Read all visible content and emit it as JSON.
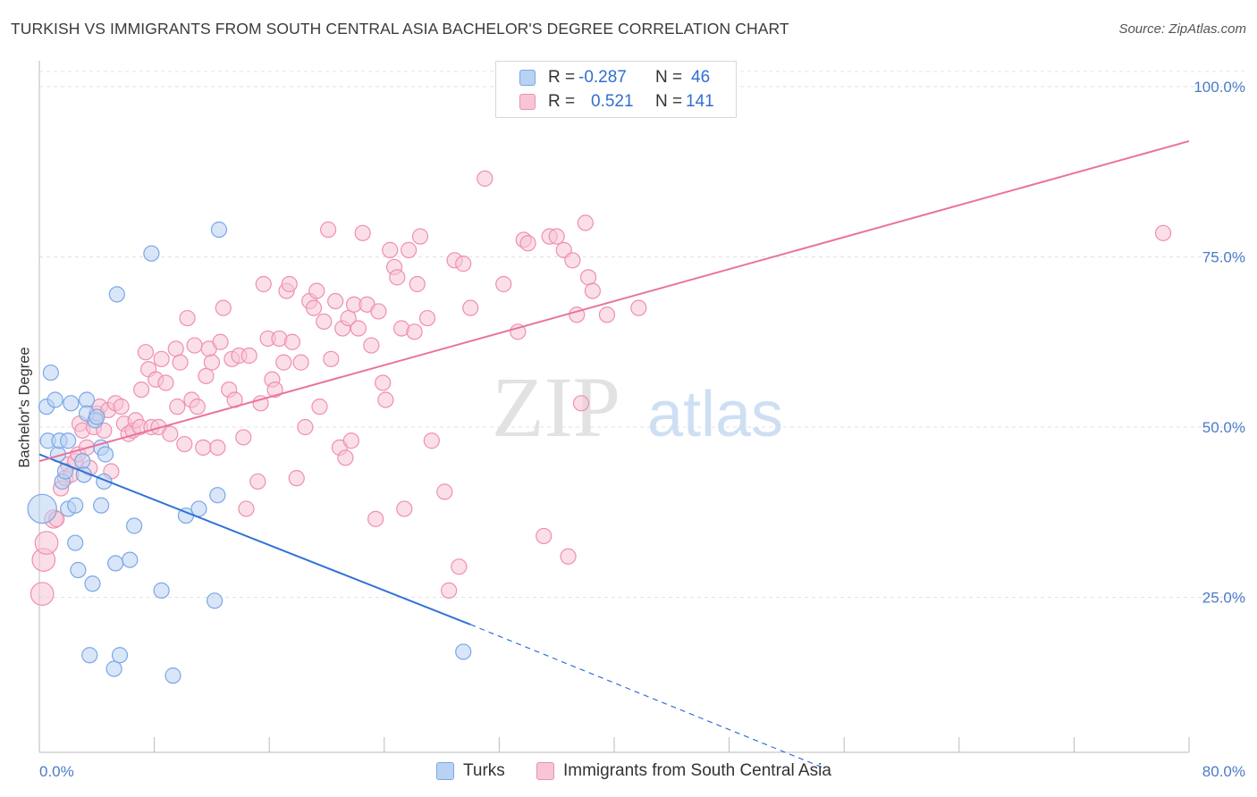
{
  "title": "TURKISH VS IMMIGRANTS FROM SOUTH CENTRAL ASIA BACHELOR'S DEGREE CORRELATION CHART",
  "source": "Source: ZipAtlas.com",
  "watermark": {
    "zip": "ZIP",
    "atlas": "atlas"
  },
  "legend_top": {
    "rows": [
      {
        "r_label": "R =",
        "r_value": "-0.287",
        "n_label": "N =",
        "n_value": "46",
        "color": "#7aa7e6",
        "fill": "#b9d1f3"
      },
      {
        "r_label": "R =",
        "r_value": "0.521",
        "n_label": "N =",
        "n_value": "141",
        "color": "#ef8fae",
        "fill": "#f7c5d5"
      }
    ]
  },
  "legend_bottom": [
    {
      "label": "Turks",
      "color": "#7aa7e6",
      "fill": "#b9d1f3"
    },
    {
      "label": "Immigrants from South Central Asia",
      "color": "#ef8fae",
      "fill": "#f7c5d5"
    }
  ],
  "colors": {
    "blue_line": "#2f72d6",
    "pink_line": "#e8739b",
    "grid": "#e3e3e3",
    "axis_text": "#4a7bc8"
  },
  "chart_data": {
    "type": "scatter",
    "title": "TURKISH VS IMMIGRANTS FROM SOUTH CENTRAL ASIA BACHELOR'S DEGREE CORRELATION CHART",
    "xlabel": "",
    "ylabel": "Bachelor's Degree",
    "xlim": [
      0,
      80
    ],
    "ylim": [
      0,
      100
    ],
    "x_tick_labels": [
      "0.0%",
      "80.0%"
    ],
    "y_tick_labels": [
      "100.0%",
      "75.0%",
      "50.0%",
      "25.0%"
    ],
    "y_ticks": [
      100,
      75,
      50,
      25
    ],
    "grid": true,
    "legend_position": "top-center",
    "series": [
      {
        "name": "Turks",
        "color": "#7aa7e6",
        "fill": "#b9d1f3",
        "trend": {
          "x0": 0,
          "y0": 46,
          "x1": 30,
          "y1": 21,
          "dashed_to_x": 54.5,
          "dashed_to_y": 0
        },
        "points": [
          [
            0.2,
            38,
            1.9
          ],
          [
            0.5,
            53,
            1
          ],
          [
            0.6,
            48,
            1
          ],
          [
            0.8,
            58,
            1
          ],
          [
            1.1,
            54,
            1
          ],
          [
            1.3,
            46,
            1
          ],
          [
            1.4,
            48,
            1
          ],
          [
            1.6,
            42,
            1
          ],
          [
            1.8,
            43.5,
            1
          ],
          [
            2.0,
            48,
            1
          ],
          [
            2.0,
            38,
            1
          ],
          [
            2.2,
            53.5,
            1
          ],
          [
            2.5,
            33,
            1
          ],
          [
            2.7,
            29,
            1
          ],
          [
            2.5,
            38.5,
            1
          ],
          [
            3.0,
            45,
            1
          ],
          [
            3.1,
            43,
            1
          ],
          [
            3.3,
            54,
            1
          ],
          [
            3.3,
            52,
            1
          ],
          [
            3.5,
            16.5,
            1
          ],
          [
            3.7,
            27,
            1
          ],
          [
            3.9,
            51,
            1
          ],
          [
            4.0,
            51.5,
            1
          ],
          [
            4.3,
            47,
            1
          ],
          [
            4.3,
            38.5,
            1
          ],
          [
            4.5,
            42,
            1
          ],
          [
            4.6,
            46,
            1
          ],
          [
            5.2,
            14.5,
            1
          ],
          [
            5.3,
            30,
            1
          ],
          [
            5.4,
            69.5,
            1
          ],
          [
            5.6,
            16.5,
            1
          ],
          [
            6.3,
            30.5,
            1
          ],
          [
            6.6,
            35.5,
            1
          ],
          [
            7.8,
            75.5,
            1
          ],
          [
            8.5,
            26,
            1
          ],
          [
            9.3,
            13.5,
            1
          ],
          [
            10.2,
            37,
            1
          ],
          [
            11.1,
            38,
            1
          ],
          [
            12.2,
            24.5,
            1
          ],
          [
            12.4,
            40,
            1
          ],
          [
            12.5,
            79,
            1
          ],
          [
            29.5,
            17,
            1
          ]
        ]
      },
      {
        "name": "Immigrants from South Central Asia",
        "color": "#ef8fae",
        "fill": "#f7c5d5",
        "trend": {
          "x0": 0,
          "y0": 45,
          "x1": 80,
          "y1": 92
        },
        "points": [
          [
            0.2,
            25.5,
            1.5
          ],
          [
            0.3,
            30.5,
            1.5
          ],
          [
            0.5,
            33,
            1.5
          ],
          [
            1.0,
            36.5,
            1.2
          ],
          [
            1.2,
            36.5,
            1
          ],
          [
            1.5,
            41,
            1
          ],
          [
            1.8,
            42.5,
            1
          ],
          [
            2.0,
            44.5,
            1
          ],
          [
            2.2,
            43,
            1
          ],
          [
            2.5,
            45,
            1
          ],
          [
            2.7,
            46,
            1
          ],
          [
            2.8,
            50.5,
            1
          ],
          [
            3.0,
            49.5,
            1
          ],
          [
            3.3,
            47,
            1
          ],
          [
            3.5,
            44,
            1
          ],
          [
            3.8,
            50,
            1
          ],
          [
            4.0,
            52,
            1
          ],
          [
            4.2,
            53,
            1
          ],
          [
            4.5,
            49.5,
            1
          ],
          [
            4.8,
            52.5,
            1
          ],
          [
            5.0,
            43.5,
            1
          ],
          [
            5.3,
            53.5,
            1
          ],
          [
            5.7,
            53,
            1
          ],
          [
            5.9,
            50.5,
            1
          ],
          [
            6.2,
            49,
            1
          ],
          [
            6.5,
            49.5,
            1
          ],
          [
            6.7,
            51,
            1
          ],
          [
            7.0,
            50,
            1
          ],
          [
            7.1,
            55.5,
            1
          ],
          [
            7.4,
            61,
            1
          ],
          [
            7.6,
            58.5,
            1
          ],
          [
            7.8,
            50,
            1
          ],
          [
            8.1,
            57,
            1
          ],
          [
            8.3,
            50,
            1
          ],
          [
            8.5,
            60,
            1
          ],
          [
            8.8,
            56.5,
            1
          ],
          [
            9.1,
            49,
            1
          ],
          [
            9.5,
            61.5,
            1
          ],
          [
            9.6,
            53,
            1
          ],
          [
            9.8,
            59.5,
            1
          ],
          [
            10.1,
            47.5,
            1
          ],
          [
            10.3,
            66,
            1
          ],
          [
            10.6,
            54,
            1
          ],
          [
            10.8,
            62,
            1
          ],
          [
            11.0,
            53,
            1
          ],
          [
            11.4,
            47,
            1
          ],
          [
            11.6,
            57.5,
            1
          ],
          [
            11.8,
            61.5,
            1
          ],
          [
            12.0,
            59.5,
            1
          ],
          [
            12.4,
            47,
            1
          ],
          [
            12.6,
            62.5,
            1
          ],
          [
            12.8,
            67.5,
            1
          ],
          [
            13.2,
            55.5,
            1
          ],
          [
            13.4,
            60,
            1
          ],
          [
            13.6,
            54,
            1
          ],
          [
            13.9,
            60.5,
            1
          ],
          [
            14.2,
            48.5,
            1
          ],
          [
            14.4,
            38,
            1
          ],
          [
            14.6,
            60.5,
            1
          ],
          [
            15.2,
            42,
            1
          ],
          [
            15.4,
            53.5,
            1
          ],
          [
            15.6,
            71,
            1
          ],
          [
            15.9,
            63,
            1
          ],
          [
            16.2,
            57,
            1
          ],
          [
            16.4,
            55.5,
            1
          ],
          [
            16.7,
            63,
            1
          ],
          [
            17.0,
            59.5,
            1
          ],
          [
            17.2,
            70,
            1
          ],
          [
            17.4,
            71,
            1
          ],
          [
            17.6,
            62.5,
            1
          ],
          [
            17.9,
            42.5,
            1
          ],
          [
            18.2,
            59.5,
            1
          ],
          [
            18.5,
            50,
            1
          ],
          [
            18.8,
            68.5,
            1
          ],
          [
            19.1,
            67.5,
            1
          ],
          [
            19.3,
            70,
            1
          ],
          [
            19.5,
            53,
            1
          ],
          [
            19.8,
            65.5,
            1
          ],
          [
            20.1,
            79,
            1
          ],
          [
            20.3,
            60,
            1
          ],
          [
            20.6,
            68.5,
            1
          ],
          [
            20.9,
            47,
            1
          ],
          [
            21.1,
            64.5,
            1
          ],
          [
            21.3,
            45.5,
            1
          ],
          [
            21.5,
            66,
            1
          ],
          [
            21.7,
            48,
            1
          ],
          [
            21.9,
            68,
            1
          ],
          [
            22.2,
            64.5,
            1
          ],
          [
            22.5,
            78.5,
            1
          ],
          [
            22.8,
            68,
            1
          ],
          [
            23.1,
            62,
            1
          ],
          [
            23.4,
            36.5,
            1
          ],
          [
            23.6,
            67,
            1
          ],
          [
            23.9,
            56.5,
            1
          ],
          [
            24.1,
            54,
            1
          ],
          [
            24.4,
            76,
            1
          ],
          [
            24.7,
            73.5,
            1
          ],
          [
            24.9,
            72,
            1
          ],
          [
            25.2,
            64.5,
            1
          ],
          [
            25.4,
            38,
            1
          ],
          [
            25.7,
            76,
            1
          ],
          [
            26.1,
            64,
            1
          ],
          [
            26.3,
            71,
            1
          ],
          [
            26.5,
            78,
            1
          ],
          [
            27.0,
            66,
            1
          ],
          [
            27.3,
            48,
            1
          ],
          [
            28.2,
            40.5,
            1
          ],
          [
            28.5,
            26,
            1
          ],
          [
            28.9,
            74.5,
            1
          ],
          [
            29.2,
            29.5,
            1
          ],
          [
            29.5,
            74,
            1
          ],
          [
            30.0,
            67.5,
            1
          ],
          [
            31.0,
            86.5,
            1
          ],
          [
            32.3,
            71,
            1
          ],
          [
            33.3,
            64,
            1
          ],
          [
            33.7,
            77.5,
            1
          ],
          [
            34.0,
            77,
            1
          ],
          [
            35.1,
            34,
            1
          ],
          [
            35.5,
            78,
            1
          ],
          [
            36.0,
            78,
            1
          ],
          [
            36.5,
            76,
            1
          ],
          [
            36.8,
            31,
            1
          ],
          [
            37.1,
            74.5,
            1
          ],
          [
            37.4,
            66.5,
            1
          ],
          [
            37.7,
            53.5,
            1
          ],
          [
            38.0,
            80,
            1
          ],
          [
            38.2,
            72,
            1
          ],
          [
            38.5,
            70,
            1
          ],
          [
            39.5,
            66.5,
            1
          ],
          [
            41.7,
            67.5,
            1
          ],
          [
            78.2,
            78.5,
            1
          ]
        ]
      }
    ]
  }
}
